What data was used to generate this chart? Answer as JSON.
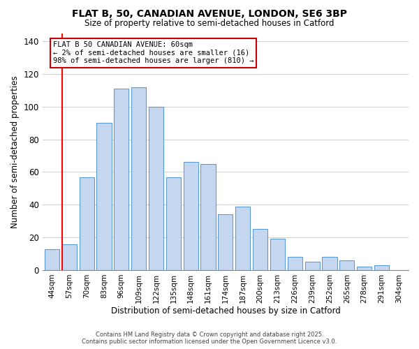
{
  "title": "FLAT B, 50, CANADIAN AVENUE, LONDON, SE6 3BP",
  "subtitle": "Size of property relative to semi-detached houses in Catford",
  "xlabel": "Distribution of semi-detached houses by size in Catford",
  "ylabel": "Number of semi-detached properties",
  "bar_labels": [
    "44sqm",
    "57sqm",
    "70sqm",
    "83sqm",
    "96sqm",
    "109sqm",
    "122sqm",
    "135sqm",
    "148sqm",
    "161sqm",
    "174sqm",
    "187sqm",
    "200sqm",
    "213sqm",
    "226sqm",
    "239sqm",
    "252sqm",
    "265sqm",
    "278sqm",
    "291sqm",
    "304sqm"
  ],
  "bar_values": [
    13,
    16,
    57,
    90,
    111,
    112,
    100,
    57,
    66,
    65,
    34,
    39,
    25,
    19,
    8,
    5,
    8,
    6,
    2,
    3,
    0
  ],
  "bar_color": "#c5d8f0",
  "bar_edge_color": "#5b9bd5",
  "highlight_color": "#ff0000",
  "ylim": [
    0,
    145
  ],
  "yticks": [
    0,
    20,
    40,
    60,
    80,
    100,
    120,
    140
  ],
  "annotation_title": "FLAT B 50 CANADIAN AVENUE: 60sqm",
  "annotation_line1": "← 2% of semi-detached houses are smaller (16)",
  "annotation_line2": "98% of semi-detached houses are larger (810) →",
  "annotation_box_color": "#ffffff",
  "annotation_box_edge": "#cc0000",
  "footer_line1": "Contains HM Land Registry data © Crown copyright and database right 2025.",
  "footer_line2": "Contains public sector information licensed under the Open Government Licence v3.0.",
  "background_color": "#ffffff",
  "grid_color": "#d0d0d0"
}
